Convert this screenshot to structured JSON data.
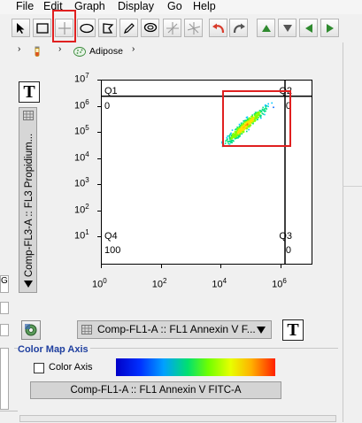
{
  "menu": [
    "File",
    "Edit",
    "Graph",
    "Display",
    "Go",
    "Help"
  ],
  "toolbar": {
    "tools": [
      "arrow-icon",
      "rectangle-icon",
      "crosshair-icon",
      "ellipse-icon",
      "polygon-icon",
      "pen-icon",
      "lasso-icon",
      "quadrant-icon",
      "spider-icon",
      "undo-icon",
      "redo-icon",
      "up-icon",
      "down-icon",
      "left-icon",
      "right-icon"
    ],
    "colors": {
      "undo_redo": "#d83b2b",
      "nav": "#2f8a2f"
    }
  },
  "breadcrumb": {
    "population": "Adipose"
  },
  "y_axis": {
    "parameter": "Comp-FL3-A :: FL3 Propidium...",
    "t_label": "T"
  },
  "x_axis": {
    "parameter": "Comp-FL1-A :: FL1 Annexin V F...",
    "t_label": "T"
  },
  "quadrants": [
    {
      "name": "Q1",
      "value": "0"
    },
    {
      "name": "Q2",
      "value": "0"
    },
    {
      "name": "Q3",
      "value": "0"
    },
    {
      "name": "Q4",
      "value": "100"
    }
  ],
  "chart_data": {
    "type": "scatter",
    "x_scale": "log",
    "y_scale": "log",
    "xlim": [
      1,
      10000000
    ],
    "ylim": [
      1,
      10000000
    ],
    "x_ticks": [
      "0",
      "2",
      "4",
      "6"
    ],
    "y_ticks": [
      "7",
      "6",
      "5",
      "4",
      "3",
      "2",
      "1"
    ],
    "quadrant_gate": {
      "x": 1300000,
      "y": 2500000
    },
    "population_center": {
      "x": 60000,
      "y": 200000
    }
  },
  "color_map": {
    "title": "Color Map Axis",
    "checkbox_label": "Color Axis",
    "checked": false,
    "parameter": "Comp-FL1-A :: FL1 Annexin V FITC-A"
  },
  "left_fragments": [
    "Gr",
    "",
    ""
  ],
  "colors": {
    "highlight": "#e02020",
    "group_title": "#1f3f9f"
  }
}
